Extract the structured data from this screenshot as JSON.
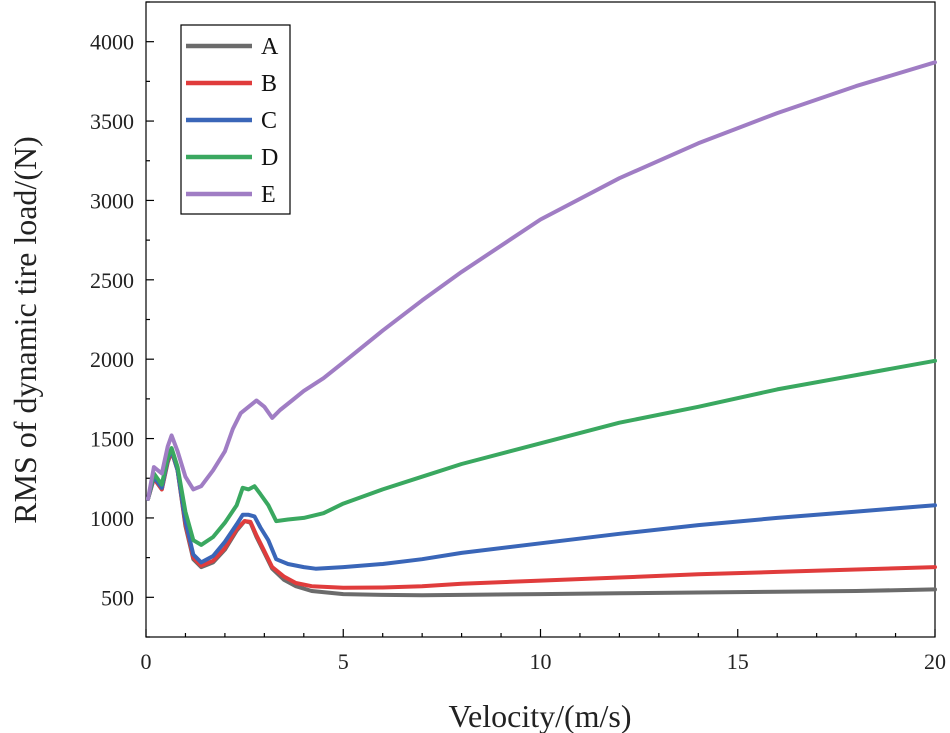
{
  "chart_data": {
    "type": "line",
    "title": "",
    "xlabel": "Velocity/(m/s)",
    "ylabel": "RMS of dynamic tire load/(N)",
    "xlim": [
      0,
      20
    ],
    "ylim": [
      250,
      4250
    ],
    "x_ticks": [
      0,
      5,
      10,
      15,
      20
    ],
    "y_ticks": [
      500,
      1000,
      1500,
      2000,
      2500,
      3000,
      3500,
      4000
    ],
    "grid": false,
    "legend_position": "top-left",
    "series": [
      {
        "name": "A",
        "color": "#6b6b6b",
        "x": [
          0.05,
          0.2,
          0.4,
          0.55,
          0.65,
          0.8,
          1.0,
          1.2,
          1.4,
          1.7,
          2.0,
          2.3,
          2.5,
          2.65,
          2.8,
          3.0,
          3.2,
          3.5,
          3.8,
          4.2,
          5,
          6,
          7,
          8,
          10,
          12,
          14,
          16,
          18,
          20
        ],
        "y": [
          1120,
          1250,
          1180,
          1350,
          1420,
          1300,
          950,
          740,
          690,
          720,
          800,
          920,
          980,
          970,
          880,
          780,
          680,
          610,
          570,
          540,
          520,
          515,
          513,
          515,
          520,
          525,
          530,
          535,
          540,
          550
        ]
      },
      {
        "name": "B",
        "color": "#e03c3c",
        "x": [
          0.05,
          0.2,
          0.4,
          0.55,
          0.65,
          0.8,
          1.0,
          1.2,
          1.4,
          1.7,
          2.0,
          2.3,
          2.5,
          2.65,
          2.8,
          3.0,
          3.2,
          3.5,
          3.8,
          4.2,
          5,
          6,
          7,
          8,
          10,
          12,
          14,
          16,
          18,
          20
        ],
        "y": [
          1120,
          1250,
          1180,
          1360,
          1420,
          1300,
          960,
          750,
          700,
          730,
          810,
          930,
          980,
          975,
          890,
          790,
          690,
          630,
          590,
          570,
          560,
          562,
          570,
          585,
          605,
          625,
          645,
          660,
          675,
          690
        ]
      },
      {
        "name": "C",
        "color": "#3a66b8",
        "x": [
          0.05,
          0.2,
          0.4,
          0.55,
          0.65,
          0.8,
          1.0,
          1.2,
          1.4,
          1.7,
          2.0,
          2.3,
          2.45,
          2.6,
          2.75,
          2.9,
          3.1,
          3.3,
          3.6,
          4.0,
          4.3,
          5,
          6,
          7,
          8,
          10,
          12,
          14,
          16,
          18,
          20
        ],
        "y": [
          1120,
          1260,
          1190,
          1370,
          1430,
          1300,
          980,
          770,
          720,
          760,
          850,
          960,
          1020,
          1020,
          1010,
          940,
          860,
          740,
          710,
          690,
          680,
          690,
          710,
          740,
          780,
          840,
          900,
          955,
          1000,
          1040,
          1080
        ]
      },
      {
        "name": "D",
        "color": "#3aa860",
        "x": [
          0.05,
          0.2,
          0.4,
          0.55,
          0.65,
          0.8,
          1.0,
          1.2,
          1.4,
          1.7,
          2.0,
          2.3,
          2.45,
          2.6,
          2.75,
          2.9,
          3.1,
          3.3,
          3.6,
          4.0,
          4.5,
          5,
          6,
          7,
          8,
          10,
          12,
          14,
          16,
          18,
          20
        ],
        "y": [
          1120,
          1280,
          1210,
          1380,
          1440,
          1320,
          1040,
          860,
          830,
          880,
          970,
          1080,
          1190,
          1180,
          1200,
          1150,
          1080,
          980,
          990,
          1000,
          1030,
          1090,
          1180,
          1260,
          1340,
          1470,
          1600,
          1700,
          1810,
          1900,
          1990
        ]
      },
      {
        "name": "E",
        "color": "#a07dc4",
        "x": [
          0.05,
          0.2,
          0.4,
          0.55,
          0.65,
          0.8,
          1.0,
          1.2,
          1.4,
          1.7,
          2.0,
          2.2,
          2.4,
          2.6,
          2.8,
          3.0,
          3.2,
          3.4,
          3.7,
          4.0,
          4.5,
          5,
          6,
          7,
          8,
          10,
          12,
          14,
          16,
          18,
          20
        ],
        "y": [
          1120,
          1320,
          1280,
          1450,
          1520,
          1420,
          1260,
          1180,
          1200,
          1300,
          1420,
          1560,
          1660,
          1700,
          1740,
          1700,
          1630,
          1680,
          1740,
          1800,
          1880,
          1980,
          2180,
          2370,
          2550,
          2880,
          3140,
          3360,
          3550,
          3720,
          3870
        ]
      }
    ]
  }
}
